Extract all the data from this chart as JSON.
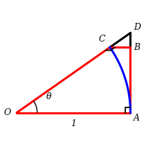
{
  "theta_deg": 35.0,
  "label_O": "O",
  "label_A": "A",
  "label_D": "D",
  "label_B": "B",
  "label_C": "C",
  "label_theta": "θ",
  "label_1": "1",
  "bg_color": "#ffffff",
  "red_color": "#ff0000",
  "blue_color": "#0000ff",
  "black_color": "#000000"
}
